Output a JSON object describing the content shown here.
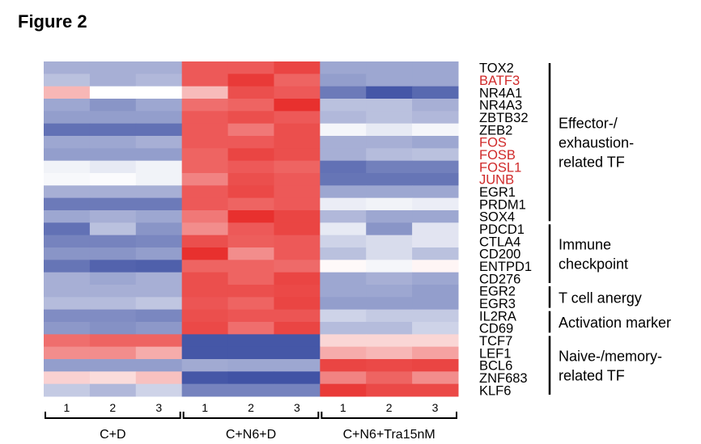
{
  "figure_title": "Figure 2",
  "chart_data": {
    "type": "heatmap",
    "title": "",
    "color_scale": {
      "low": "#3b4ea2",
      "mid": "#ffffff",
      "high": "#e8302e",
      "range": [
        -1,
        1
      ]
    },
    "column_groups": [
      {
        "label": "C+D",
        "columns": [
          "1",
          "2",
          "3"
        ]
      },
      {
        "label": "C+N6+D",
        "columns": [
          "1",
          "2",
          "3"
        ]
      },
      {
        "label": "C+N6+Tra15nM",
        "columns": [
          "1",
          "2",
          "3"
        ]
      }
    ],
    "rows": [
      {
        "gene": "TOX2",
        "highlight": false,
        "values": [
          -0.45,
          -0.45,
          -0.45,
          0.8,
          0.8,
          0.9,
          -0.5,
          -0.5,
          -0.5
        ]
      },
      {
        "gene": "BATF3",
        "highlight": true,
        "values": [
          -0.35,
          -0.45,
          -0.4,
          0.8,
          0.95,
          0.75,
          -0.55,
          -0.5,
          -0.5
        ]
      },
      {
        "gene": "NR4A1",
        "highlight": false,
        "values": [
          0.35,
          0,
          0,
          0.33,
          0.85,
          0.8,
          -0.75,
          -0.95,
          -0.85
        ]
      },
      {
        "gene": "NR4A3",
        "highlight": false,
        "values": [
          -0.5,
          -0.6,
          -0.5,
          0.7,
          0.75,
          1.0,
          -0.35,
          -0.35,
          -0.45
        ]
      },
      {
        "gene": "ZBTB32",
        "highlight": false,
        "values": [
          -0.55,
          -0.55,
          -0.55,
          0.8,
          0.85,
          0.8,
          -0.4,
          -0.35,
          -0.4
        ]
      },
      {
        "gene": "ZEB2",
        "highlight": false,
        "values": [
          -0.8,
          -0.8,
          -0.8,
          0.8,
          0.65,
          0.85,
          -0.05,
          -0.12,
          -0.05
        ]
      },
      {
        "gene": "FOS",
        "highlight": true,
        "values": [
          -0.5,
          -0.5,
          -0.45,
          0.8,
          0.8,
          0.85,
          -0.45,
          -0.45,
          -0.5
        ]
      },
      {
        "gene": "FOSB",
        "highlight": true,
        "values": [
          -0.55,
          -0.55,
          -0.55,
          0.75,
          0.9,
          0.85,
          -0.45,
          -0.38,
          -0.35
        ]
      },
      {
        "gene": "FOSL1",
        "highlight": true,
        "values": [
          -0.07,
          -0.12,
          -0.07,
          0.75,
          0.8,
          0.75,
          -0.8,
          -0.72,
          -0.72
        ]
      },
      {
        "gene": "JUNB",
        "highlight": true,
        "values": [
          -0.04,
          -0.02,
          -0.07,
          0.6,
          0.85,
          0.8,
          -0.78,
          -0.78,
          -0.78
        ]
      },
      {
        "gene": "EGR1",
        "highlight": false,
        "values": [
          -0.45,
          -0.45,
          -0.45,
          0.8,
          0.88,
          0.8,
          -0.5,
          -0.5,
          -0.5
        ]
      },
      {
        "gene": "PRDM1",
        "highlight": false,
        "values": [
          -0.75,
          -0.75,
          -0.75,
          0.8,
          0.75,
          0.8,
          -0.1,
          -0.07,
          -0.1
        ]
      },
      {
        "gene": "SOX4",
        "highlight": false,
        "values": [
          -0.5,
          -0.45,
          -0.5,
          0.65,
          1.0,
          0.9,
          -0.4,
          -0.5,
          -0.5
        ]
      },
      {
        "gene": "PDCD1",
        "highlight": false,
        "values": [
          -0.8,
          -0.35,
          -0.6,
          0.55,
          0.8,
          0.9,
          -0.12,
          -0.6,
          -0.15
        ]
      },
      {
        "gene": "CTLA4",
        "highlight": false,
        "values": [
          -0.7,
          -0.7,
          -0.68,
          0.85,
          0.78,
          0.8,
          -0.25,
          -0.2,
          -0.15
        ]
      },
      {
        "gene": "CD200",
        "highlight": false,
        "values": [
          -0.6,
          -0.6,
          -0.55,
          1.0,
          0.55,
          0.8,
          -0.35,
          -0.2,
          -0.35
        ]
      },
      {
        "gene": "ENTPD1",
        "highlight": false,
        "values": [
          -0.78,
          -0.88,
          -0.9,
          0.75,
          0.75,
          0.72,
          0.03,
          -0.05,
          0.05
        ]
      },
      {
        "gene": "CD276",
        "highlight": false,
        "values": [
          -0.45,
          -0.5,
          -0.45,
          0.85,
          0.75,
          0.9,
          -0.5,
          -0.45,
          -0.5
        ]
      },
      {
        "gene": "EGR2",
        "highlight": false,
        "values": [
          -0.45,
          -0.45,
          -0.45,
          0.85,
          0.85,
          0.88,
          -0.5,
          -0.5,
          -0.55
        ]
      },
      {
        "gene": "EGR3",
        "highlight": false,
        "values": [
          -0.38,
          -0.38,
          -0.32,
          0.82,
          0.75,
          0.9,
          -0.55,
          -0.55,
          -0.55
        ]
      },
      {
        "gene": "IL2RA",
        "highlight": false,
        "values": [
          -0.65,
          -0.65,
          -0.68,
          0.85,
          0.82,
          0.82,
          -0.25,
          -0.3,
          -0.3
        ]
      },
      {
        "gene": "CD69",
        "highlight": false,
        "values": [
          -0.58,
          -0.62,
          -0.58,
          0.88,
          0.7,
          0.9,
          -0.38,
          -0.38,
          -0.25
        ]
      },
      {
        "gene": "TCF7",
        "highlight": false,
        "values": [
          0.7,
          0.75,
          0.75,
          -0.95,
          -0.95,
          -0.95,
          0.2,
          0.2,
          0.2
        ]
      },
      {
        "gene": "LEF1",
        "highlight": false,
        "values": [
          0.55,
          0.55,
          0.4,
          -0.95,
          -0.95,
          -0.95,
          0.4,
          0.35,
          0.45
        ]
      },
      {
        "gene": "BCL6",
        "highlight": false,
        "values": [
          -0.55,
          -0.55,
          -0.55,
          -0.48,
          -0.5,
          -0.5,
          0.9,
          0.88,
          0.9
        ]
      },
      {
        "gene": "ZNF683",
        "highlight": false,
        "values": [
          0.22,
          0.17,
          0.3,
          -0.95,
          -0.97,
          -0.97,
          0.6,
          0.75,
          0.55
        ]
      },
      {
        "gene": "KLF6",
        "highlight": false,
        "values": [
          -0.3,
          -0.4,
          -0.25,
          -0.7,
          -0.7,
          -0.7,
          0.95,
          0.88,
          0.88
        ]
      }
    ],
    "row_groups": [
      {
        "lines": [
          "Effector-/",
          "exhaustion-",
          "related TF"
        ],
        "from": "TOX2",
        "to": "SOX4"
      },
      {
        "lines": [
          "Immune",
          "checkpoint"
        ],
        "from": "PDCD1",
        "to": "CD276"
      },
      {
        "lines": [
          "T cell anergy"
        ],
        "from": "EGR2",
        "to": "EGR3"
      },
      {
        "lines": [
          "Activation marker"
        ],
        "from": "IL2RA",
        "to": "CD69"
      },
      {
        "lines": [
          "Naive-/memory-",
          "related TF"
        ],
        "from": "TCF7",
        "to": "KLF6"
      }
    ],
    "highlight_color": "#d02a2a"
  }
}
